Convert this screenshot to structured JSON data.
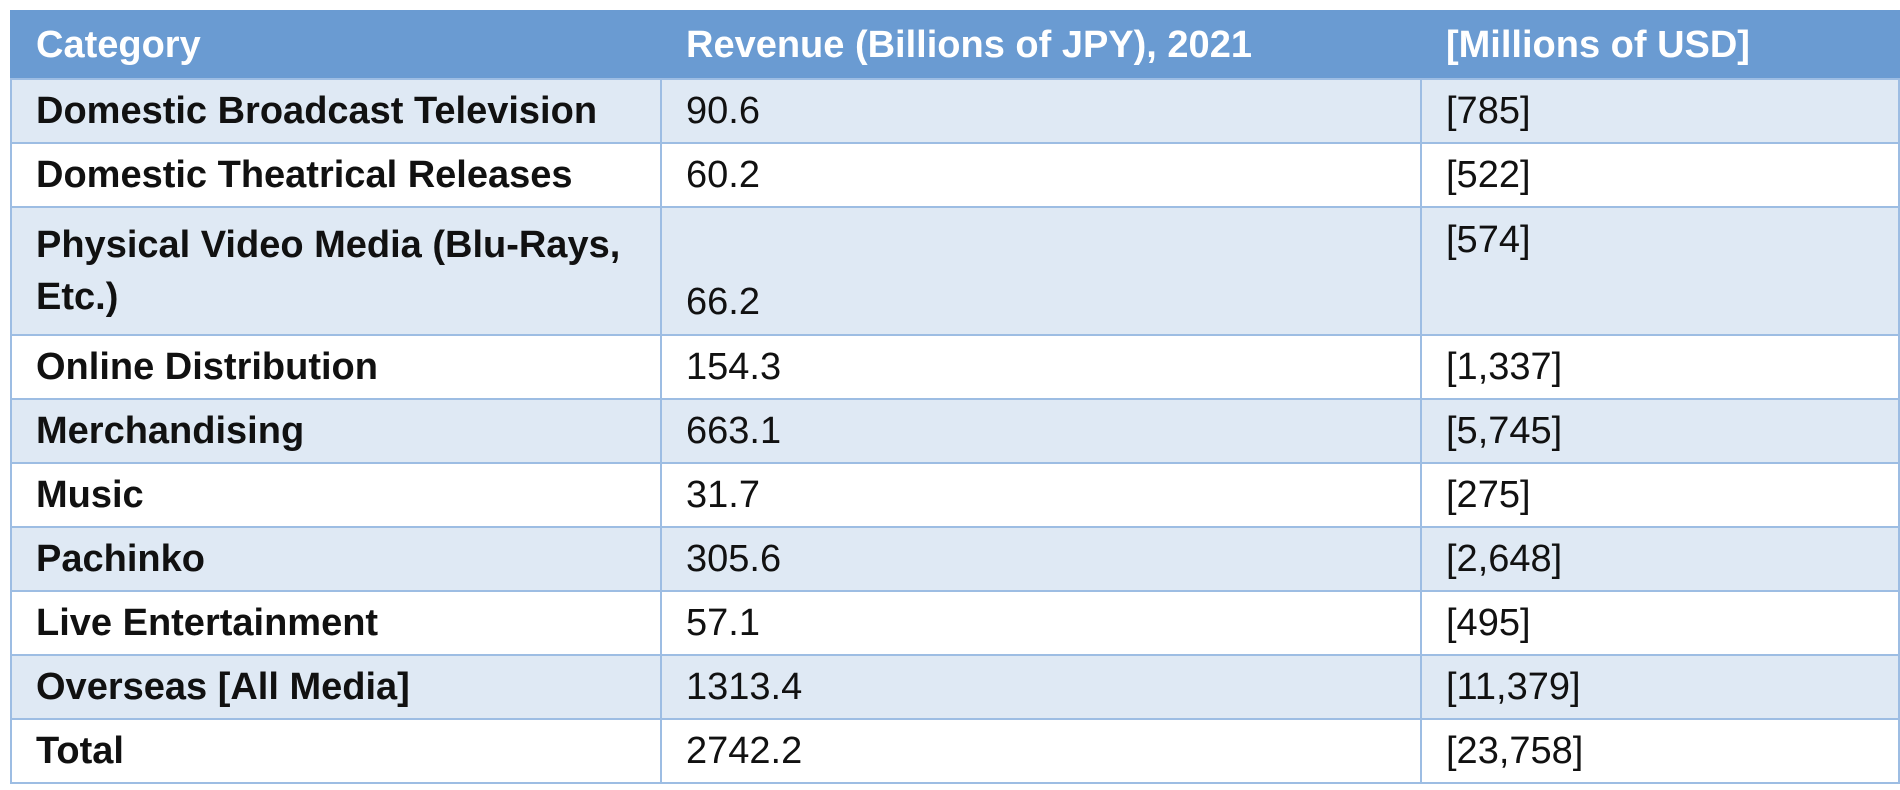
{
  "table": {
    "headers": [
      "Category",
      "Revenue (Billions of JPY), 2021",
      "[Millions of USD]"
    ],
    "rows": [
      {
        "category": "Domestic Broadcast Television",
        "jpy": "90.6",
        "usd": "[785]"
      },
      {
        "category": "Domestic Theatrical Releases",
        "jpy": "60.2",
        "usd": "[522]"
      },
      {
        "category": "Physical Video Media (Blu-Rays, Etc.)",
        "jpy": "66.2",
        "usd": "[574]"
      },
      {
        "category": "Online Distribution",
        "jpy": "154.3",
        "usd": "[1,337]"
      },
      {
        "category": "Merchandising",
        "jpy": "663.1",
        "usd": "[5,745]"
      },
      {
        "category": "Music",
        "jpy": "31.7",
        "usd": "[275]"
      },
      {
        "category": "Pachinko",
        "jpy": "305.6",
        "usd": "[2,648]"
      },
      {
        "category": "Live Entertainment",
        "jpy": "57.1",
        "usd": "[495]"
      },
      {
        "category": "Overseas [All Media]",
        "jpy": "1313.4",
        "usd": "[11,379]"
      },
      {
        "category": "Total",
        "jpy": "2742.2",
        "usd": "[23,758]"
      }
    ]
  }
}
